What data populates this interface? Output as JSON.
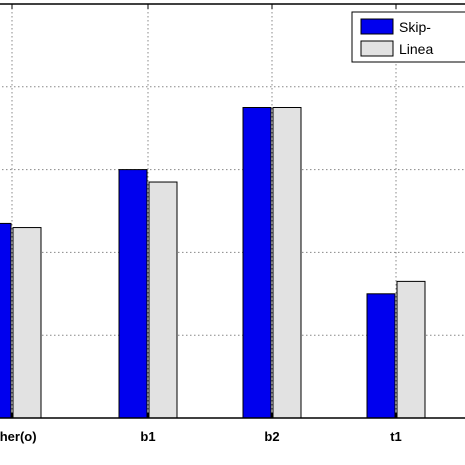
{
  "chart_data": {
    "type": "bar",
    "title": "",
    "xlabel": "",
    "ylabel": "",
    "categories": [
      "other(o)",
      "b1",
      "b2",
      "t1"
    ],
    "ylim": [
      0,
      1
    ],
    "grid": true,
    "legend_position": "top-right",
    "series": [
      {
        "name": "Skip-",
        "color": "#0000ee",
        "values": [
          0.947,
          0.96,
          0.975,
          0.93
        ]
      },
      {
        "name": "Linea",
        "color": "#e2e2e2",
        "values": [
          0.946,
          0.957,
          0.975,
          0.933
        ]
      }
    ]
  }
}
